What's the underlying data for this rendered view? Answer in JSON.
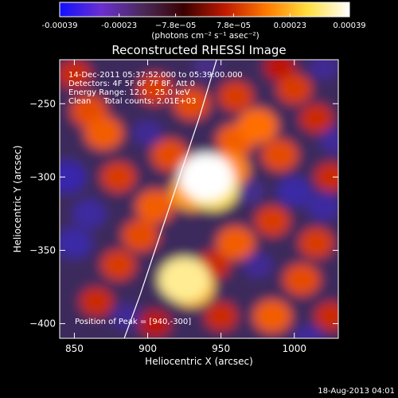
{
  "chart_data": {
    "type": "heatmap",
    "title": "Reconstructed RHESSI Image",
    "xlabel": "Heliocentric X (arcsec)",
    "ylabel": "Heliocentric Y (arcsec)",
    "xlim": [
      840,
      1030
    ],
    "ylim": [
      -410,
      -220
    ],
    "x_ticks": [
      850,
      900,
      950,
      1000
    ],
    "y_ticks": [
      -250,
      -300,
      -350,
      -400
    ],
    "colorbar": {
      "ticks": [
        "-0.00039",
        "-0.00023",
        "−7.8e−05",
        "7.8e−05",
        "0.00023",
        "0.00039"
      ],
      "values": [
        -0.00039,
        -0.00023,
        -7.8e-05,
        7.8e-05,
        0.00023,
        0.00039
      ],
      "unit_label": "(photons cm⁻² s⁻¹ asec⁻²)",
      "colors": [
        "#1010ff",
        "#6b2fd0",
        "#4a2a5a",
        "#3a0000",
        "#c01a00",
        "#ff7a00",
        "#ffe040",
        "#ffffff"
      ]
    },
    "annotations": [
      "14-Dec-2011 05:37:52.000 to 05:39:00.000",
      "Detectors: 4F 5F 6F 7F 8F, Att 0",
      "Energy Range: 12.0 - 25.0 keV",
      "Clean     Total counts: 2.01E+03"
    ],
    "peak_label": "Position of Peak = [940,-300]",
    "peak": [
      940,
      -300
    ],
    "limb_curve": [
      [
        884,
        -410
      ],
      [
        895,
        -380
      ],
      [
        905,
        -350
      ],
      [
        915,
        -320
      ],
      [
        925,
        -290
      ],
      [
        935,
        -260
      ],
      [
        944,
        -230
      ],
      [
        947,
        -220
      ]
    ],
    "blobs": [
      {
        "x": 940,
        "y": -300,
        "v": 1.0
      },
      {
        "x": 945,
        "y": -308,
        "v": 0.85
      },
      {
        "x": 930,
        "y": -310,
        "v": 0.7
      },
      {
        "x": 955,
        "y": -295,
        "v": 0.65
      },
      {
        "x": 925,
        "y": -370,
        "v": 0.9
      },
      {
        "x": 930,
        "y": -375,
        "v": 0.75
      },
      {
        "x": 905,
        "y": -320,
        "v": 0.55
      },
      {
        "x": 895,
        "y": -340,
        "v": 0.5
      },
      {
        "x": 880,
        "y": -300,
        "v": 0.45
      },
      {
        "x": 870,
        "y": -270,
        "v": 0.55
      },
      {
        "x": 860,
        "y": -255,
        "v": 0.5
      },
      {
        "x": 905,
        "y": -240,
        "v": 0.45
      },
      {
        "x": 930,
        "y": -250,
        "v": 0.5
      },
      {
        "x": 960,
        "y": -245,
        "v": 0.45
      },
      {
        "x": 975,
        "y": -265,
        "v": 0.6
      },
      {
        "x": 990,
        "y": -285,
        "v": 0.5
      },
      {
        "x": 1000,
        "y": -240,
        "v": 0.45
      },
      {
        "x": 1015,
        "y": -260,
        "v": 0.4
      },
      {
        "x": 1025,
        "y": -300,
        "v": 0.4
      },
      {
        "x": 985,
        "y": -330,
        "v": 0.45
      },
      {
        "x": 960,
        "y": -345,
        "v": 0.55
      },
      {
        "x": 945,
        "y": -360,
        "v": 0.4
      },
      {
        "x": 1015,
        "y": -345,
        "v": 0.45
      },
      {
        "x": 1005,
        "y": -370,
        "v": 0.5
      },
      {
        "x": 985,
        "y": -395,
        "v": 0.55
      },
      {
        "x": 950,
        "y": -395,
        "v": 0.4
      },
      {
        "x": 880,
        "y": -360,
        "v": 0.45
      },
      {
        "x": 865,
        "y": -385,
        "v": 0.4
      },
      {
        "x": 905,
        "y": -400,
        "v": 0.35
      },
      {
        "x": 1025,
        "y": -395,
        "v": 0.4
      },
      {
        "x": 960,
        "y": -275,
        "v": 0.55
      },
      {
        "x": 915,
        "y": -285,
        "v": 0.5
      },
      {
        "x": 850,
        "y": -230,
        "v": 0.4
      },
      {
        "x": 990,
        "y": -225,
        "v": 0.35
      },
      {
        "x": 1020,
        "y": -225,
        "v": -0.3
      },
      {
        "x": 845,
        "y": -300,
        "v": -0.5
      },
      {
        "x": 850,
        "y": -345,
        "v": -0.45
      },
      {
        "x": 860,
        "y": -325,
        "v": -0.4
      },
      {
        "x": 900,
        "y": -270,
        "v": -0.3
      },
      {
        "x": 1000,
        "y": -310,
        "v": -0.45
      },
      {
        "x": 1020,
        "y": -320,
        "v": -0.4
      },
      {
        "x": 1010,
        "y": -410,
        "v": -0.35
      },
      {
        "x": 1028,
        "y": -275,
        "v": -0.35
      },
      {
        "x": 975,
        "y": -360,
        "v": -0.3
      },
      {
        "x": 940,
        "y": -225,
        "v": -0.2
      },
      {
        "x": 885,
        "y": -395,
        "v": -0.3
      },
      {
        "x": 970,
        "y": -310,
        "v": -0.25
      }
    ]
  },
  "footer": {
    "timestamp": "18-Aug-2013 04:01"
  }
}
